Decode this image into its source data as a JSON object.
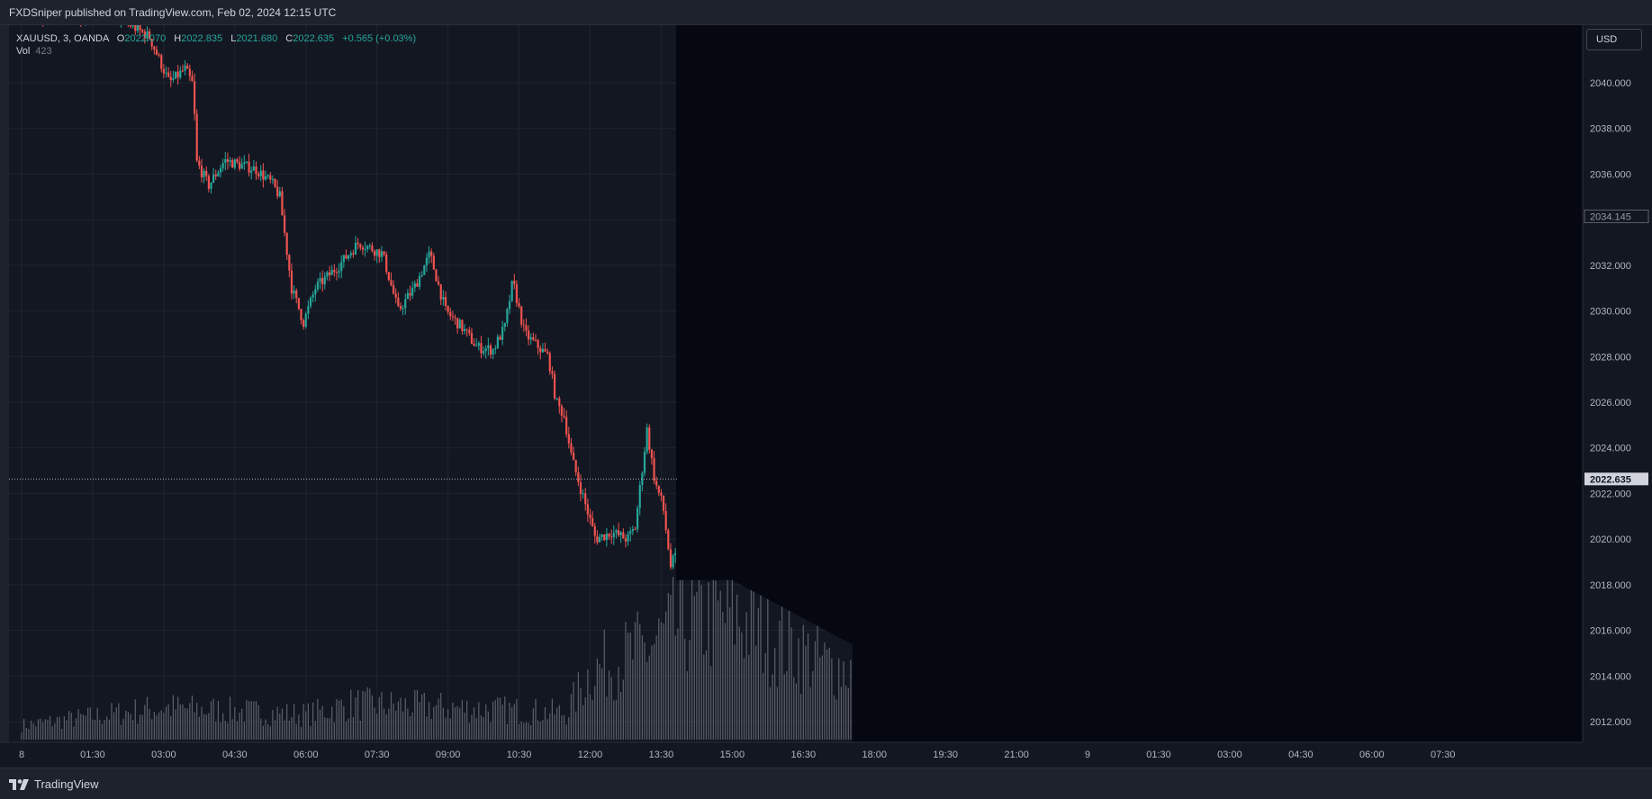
{
  "header": {
    "publish_text": "FXDSniper published on TradingView.com, Feb 02, 2024 12:15 UTC"
  },
  "footer": {
    "brand": "TradingView"
  },
  "legend": {
    "symbol": "XAUUSD, 3, OANDA",
    "o_label": "O",
    "o_value": "2022.070",
    "h_label": "H",
    "h_value": "2022.835",
    "l_label": "L",
    "l_value": "2021.680",
    "c_label": "C",
    "c_value": "2022.635",
    "change": "+0.565 (+0.03%)",
    "vol_label": "Vol",
    "vol_value": "423"
  },
  "currency_button": "USD",
  "colors": {
    "up": "#26a69a",
    "down": "#ef5350",
    "background": "#131722",
    "masked": "#050810",
    "volume": "#5d606b"
  },
  "chart_data": {
    "type": "candlestick",
    "symbol": "XAUUSD",
    "interval": "3",
    "exchange": "OANDA",
    "ylim": [
      2011,
      2042
    ],
    "y_ticks": [
      "2012.000",
      "2014.000",
      "2016.000",
      "2018.000",
      "2020.000",
      "2022.000",
      "2024.000",
      "2026.000",
      "2028.000",
      "2030.000",
      "2032.000",
      "2036.000",
      "2038.000",
      "2040.000"
    ],
    "x_ticks": [
      "8",
      "01:30",
      "03:00",
      "04:30",
      "06:00",
      "07:30",
      "09:00",
      "10:30",
      "12:00",
      "13:30",
      "15:00",
      "16:30",
      "18:00",
      "19:30",
      "21:00",
      "9",
      "01:30",
      "03:00",
      "04:30",
      "06:00",
      "07:30"
    ],
    "price_labels": {
      "last": "2022.635",
      "marker": "2034.145"
    },
    "last_price": 2022.635,
    "marker_price": 2034.145,
    "price_path": [
      [
        "00:00",
        2043.0
      ],
      [
        "02:00",
        2043.0
      ],
      [
        "02:45",
        2042.0
      ],
      [
        "03:10",
        2040.0
      ],
      [
        "03:30",
        2040.6
      ],
      [
        "03:40",
        2039.9
      ],
      [
        "03:45",
        2036.5
      ],
      [
        "04:00",
        2035.5
      ],
      [
        "04:20",
        2036.6
      ],
      [
        "05:00",
        2036.2
      ],
      [
        "05:20",
        2035.6
      ],
      [
        "05:30",
        2035.0
      ],
      [
        "05:45",
        2031.0
      ],
      [
        "06:00",
        2029.5
      ],
      [
        "06:15",
        2031.0
      ],
      [
        "06:45",
        2032.0
      ],
      [
        "07:10",
        2033.0
      ],
      [
        "07:40",
        2032.5
      ],
      [
        "08:00",
        2030.0
      ],
      [
        "08:20",
        2031.0
      ],
      [
        "08:40",
        2032.5
      ],
      [
        "09:00",
        2030.0
      ],
      [
        "09:20",
        2029.3
      ],
      [
        "09:40",
        2028.4
      ],
      [
        "10:00",
        2028.3
      ],
      [
        "10:15",
        2029.3
      ],
      [
        "10:25",
        2031.3
      ],
      [
        "10:40",
        2029.0
      ],
      [
        "11:10",
        2028.0
      ],
      [
        "11:20",
        2026.0
      ],
      [
        "11:30",
        2025.4
      ],
      [
        "11:40",
        2023.5
      ],
      [
        "12:10",
        2020.0
      ],
      [
        "12:30",
        2020.3
      ],
      [
        "12:50",
        2020.0
      ],
      [
        "13:00",
        2020.5
      ],
      [
        "13:15",
        2024.8
      ],
      [
        "13:25",
        2022.5
      ],
      [
        "13:35",
        2021.5
      ],
      [
        "13:45",
        2018.8
      ],
      [
        "13:50",
        2019.2
      ]
    ],
    "volume_profile": [
      [
        "00:00",
        80
      ],
      [
        "03:00",
        180
      ],
      [
        "06:00",
        140
      ],
      [
        "07:00",
        200
      ],
      [
        "09:00",
        180
      ],
      [
        "11:30",
        150
      ],
      [
        "12:00",
        380
      ],
      [
        "13:15",
        520
      ],
      [
        "14:00",
        660
      ],
      [
        "15:00",
        700
      ],
      [
        "16:00",
        560
      ],
      [
        "17:00",
        420
      ],
      [
        "17:30",
        400
      ]
    ],
    "masked_region": {
      "start": "13:50",
      "price_floor": 2018.2
    }
  }
}
